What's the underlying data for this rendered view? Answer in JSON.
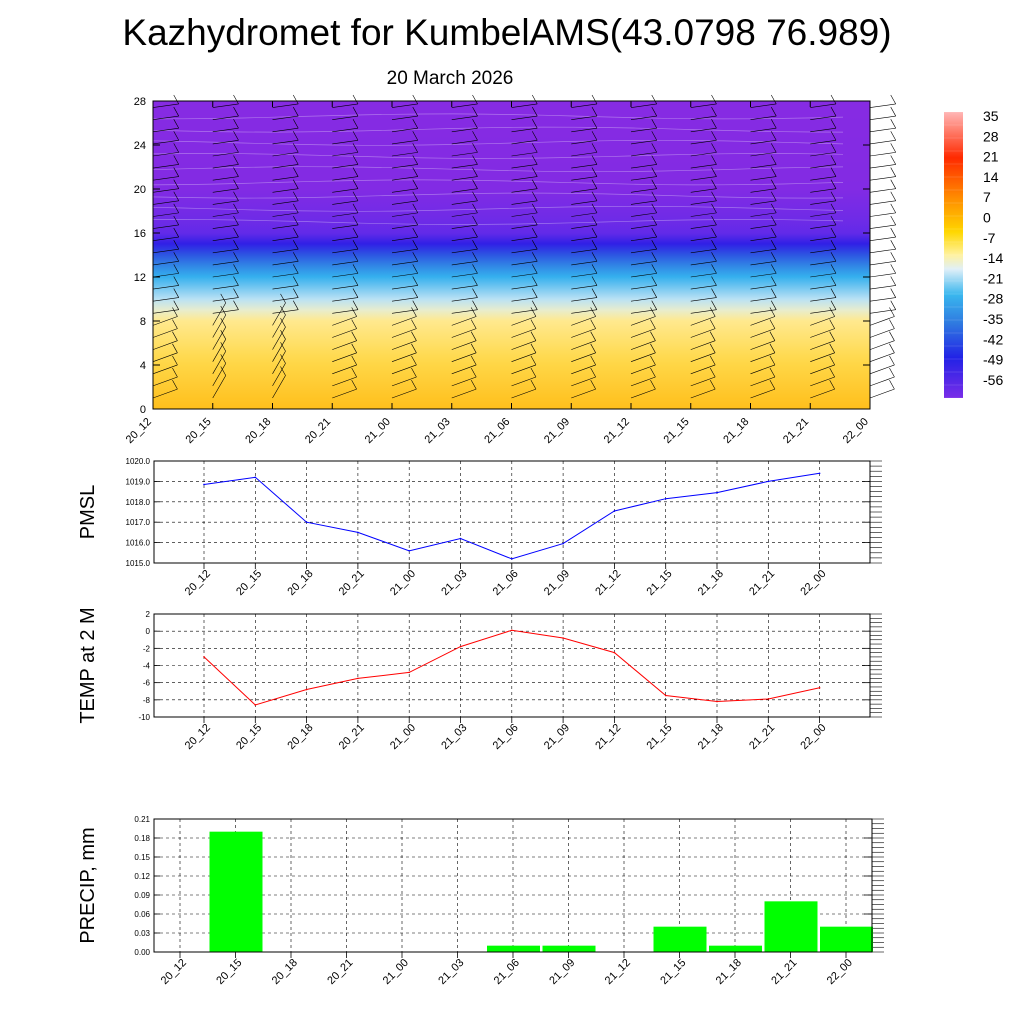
{
  "title": "Kazhydromet for KumbelAMS(43.0798 76.989)",
  "subtitle": "20 March 2026",
  "chart_data": [
    {
      "type": "heatmap",
      "name": "temperature-cross-section",
      "categories": [
        "20_12",
        "20_15",
        "20_18",
        "20_21",
        "21_00",
        "21_03",
        "21_06",
        "21_09",
        "21_12",
        "21_15",
        "21_18",
        "21_21",
        "22_00"
      ],
      "ylim": [
        0,
        28
      ],
      "yticks": [
        "0",
        "4",
        "8",
        "12",
        "16",
        "20",
        "24",
        "28"
      ],
      "colorbar_labels": [
        "35",
        "28",
        "21",
        "14",
        "7",
        "0",
        "-7",
        "-14",
        "-21",
        "-28",
        "-35",
        "-42",
        "-49",
        "-56"
      ],
      "layers": [
        {
          "height": 0,
          "temp": -3
        },
        {
          "height": 8,
          "temp": -12
        },
        {
          "height": 12,
          "temp": -30
        },
        {
          "height": 16,
          "temp": -55
        },
        {
          "height": 20,
          "temp": -62
        },
        {
          "height": 28,
          "temp": -63
        }
      ],
      "wind_barbs": "wind profile barbs at each time step"
    },
    {
      "type": "line",
      "name": "pmsl",
      "ylabel": "PMSL",
      "categories": [
        "20_12",
        "20_15",
        "20_18",
        "20_21",
        "21_00",
        "21_03",
        "21_06",
        "21_09",
        "21_12",
        "21_15",
        "21_18",
        "21_21",
        "22_00"
      ],
      "values": [
        1018.85,
        1019.2,
        1017.0,
        1016.5,
        1015.6,
        1016.2,
        1015.2,
        1015.95,
        1017.55,
        1018.15,
        1018.45,
        1019.0,
        1019.4
      ],
      "ylim": [
        1015.0,
        1020.0
      ],
      "yticks": [
        "1015.0",
        "1016.0",
        "1017.0",
        "1018.0",
        "1019.0",
        "1020.0"
      ],
      "color": "#0000ff"
    },
    {
      "type": "line",
      "name": "temp-2m",
      "ylabel": "TEMP at 2 M",
      "categories": [
        "20_12",
        "20_15",
        "20_18",
        "20_21",
        "21_00",
        "21_03",
        "21_06",
        "21_09",
        "21_12",
        "21_15",
        "21_18",
        "21_21",
        "22_00"
      ],
      "values": [
        -3.0,
        -8.6,
        -6.8,
        -5.5,
        -4.8,
        -1.8,
        0.1,
        -0.8,
        -2.5,
        -7.5,
        -8.2,
        -7.9,
        -6.6
      ],
      "ylim": [
        -10,
        2
      ],
      "yticks": [
        "-10",
        "-8",
        "-6",
        "-4",
        "-2",
        "0",
        "2"
      ],
      "color": "#ff0000"
    },
    {
      "type": "bar",
      "name": "precip",
      "ylabel": "PRECIP, mm",
      "categories": [
        "20_12",
        "20_15",
        "20_18",
        "20_21",
        "21_00",
        "21_03",
        "21_06",
        "21_09",
        "21_12",
        "21_15",
        "21_18",
        "21_21",
        "22_00"
      ],
      "values": [
        0.0,
        0.19,
        0.0,
        0.0,
        0.0,
        0.0,
        0.01,
        0.01,
        0.0,
        0.04,
        0.01,
        0.08,
        0.04
      ],
      "ylim": [
        0.0,
        0.21
      ],
      "yticks": [
        "0.00",
        "0.03",
        "0.06",
        "0.09",
        "0.12",
        "0.15",
        "0.18",
        "0.21"
      ],
      "color": "#00ff00"
    }
  ]
}
